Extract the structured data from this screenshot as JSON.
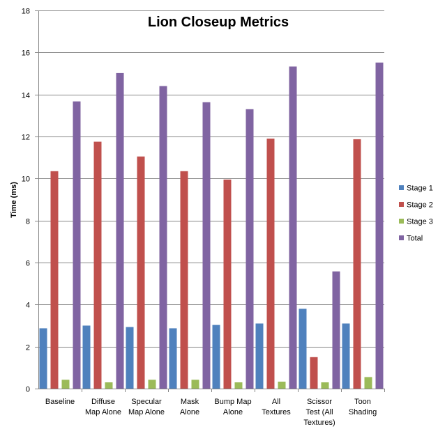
{
  "chart_data": {
    "type": "bar",
    "title": "Lion Closeup Metrics",
    "xlabel": "",
    "ylabel": "Time (ms)",
    "ylim": [
      0,
      18
    ],
    "yticks": [
      0,
      2,
      4,
      6,
      8,
      10,
      12,
      14,
      16,
      18
    ],
    "grid": true,
    "legend_position": "right",
    "categories": [
      [
        "Baseline"
      ],
      [
        "Diffuse",
        "Map Alone"
      ],
      [
        "Specular",
        "Map Alone"
      ],
      [
        "Mask",
        "Alone"
      ],
      [
        "Bump Map",
        "Alone"
      ],
      [
        "All",
        "Textures"
      ],
      [
        "Scissor",
        "Test (All",
        "Textures)"
      ],
      [
        "Toon",
        "Shading"
      ]
    ],
    "series": [
      {
        "name": "Stage 1",
        "color": "#4F81BD",
        "values": [
          2.87,
          3.0,
          2.93,
          2.87,
          3.03,
          3.1,
          3.8,
          3.1
        ]
      },
      {
        "name": "Stage 2",
        "color": "#C0504D",
        "values": [
          10.35,
          11.75,
          11.05,
          10.35,
          9.95,
          11.9,
          1.5,
          11.87
        ]
      },
      {
        "name": "Stage 3",
        "color": "#9BBB59",
        "values": [
          0.42,
          0.3,
          0.42,
          0.42,
          0.3,
          0.33,
          0.3,
          0.55
        ]
      },
      {
        "name": "Total",
        "color": "#8064A2",
        "values": [
          13.67,
          15.02,
          14.4,
          13.63,
          13.3,
          15.33,
          5.58,
          15.52
        ]
      }
    ]
  }
}
